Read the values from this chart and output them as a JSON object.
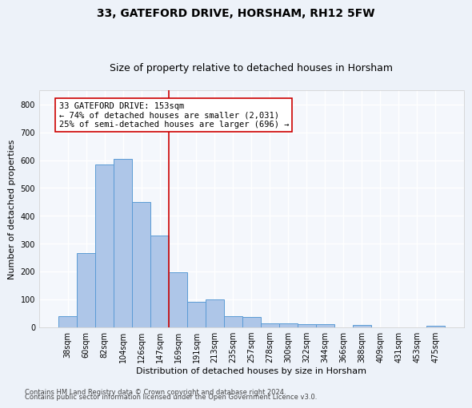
{
  "title1": "33, GATEFORD DRIVE, HORSHAM, RH12 5FW",
  "title2": "Size of property relative to detached houses in Horsham",
  "xlabel": "Distribution of detached houses by size in Horsham",
  "ylabel": "Number of detached properties",
  "categories": [
    "38sqm",
    "60sqm",
    "82sqm",
    "104sqm",
    "126sqm",
    "147sqm",
    "169sqm",
    "191sqm",
    "213sqm",
    "235sqm",
    "257sqm",
    "278sqm",
    "300sqm",
    "322sqm",
    "344sqm",
    "366sqm",
    "388sqm",
    "409sqm",
    "431sqm",
    "453sqm",
    "475sqm"
  ],
  "values": [
    38,
    265,
    585,
    605,
    450,
    328,
    196,
    92,
    100,
    40,
    37,
    13,
    13,
    10,
    10,
    0,
    7,
    0,
    0,
    0,
    5
  ],
  "bar_color": "#aec6e8",
  "bar_edge_color": "#5b9bd5",
  "vline_x": 5.5,
  "vline_color": "#cc0000",
  "annotation_text": "33 GATEFORD DRIVE: 153sqm\n← 74% of detached houses are smaller (2,031)\n25% of semi-detached houses are larger (696) →",
  "annotation_box_color": "#ffffff",
  "annotation_box_edge": "#cc0000",
  "ylim": [
    0,
    850
  ],
  "yticks": [
    0,
    100,
    200,
    300,
    400,
    500,
    600,
    700,
    800
  ],
  "footnote1": "Contains HM Land Registry data © Crown copyright and database right 2024.",
  "footnote2": "Contains public sector information licensed under the Open Government Licence v3.0.",
  "bg_color": "#edf2f9",
  "plot_bg_color": "#f4f7fc",
  "grid_color": "#ffffff",
  "title1_fontsize": 10,
  "title2_fontsize": 9,
  "tick_fontsize": 7,
  "ylabel_fontsize": 8,
  "xlabel_fontsize": 8,
  "annot_fontsize": 7.5,
  "footnote_fontsize": 6
}
